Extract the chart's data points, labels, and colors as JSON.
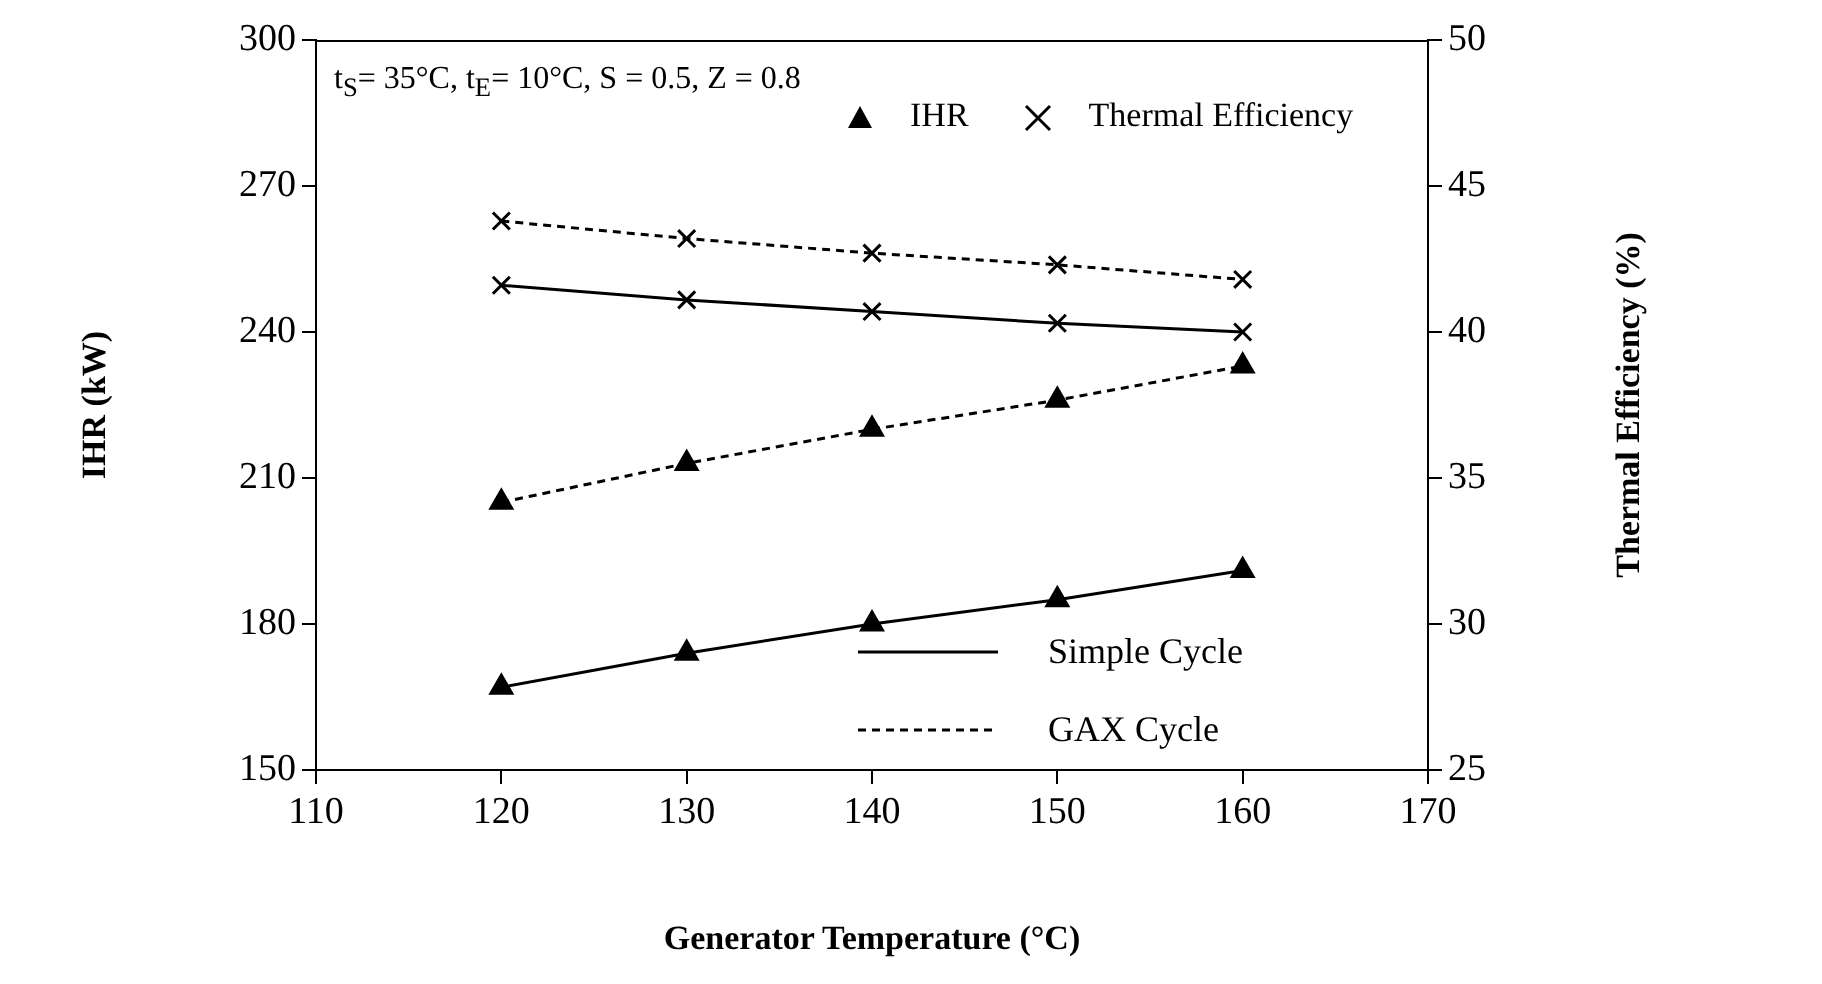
{
  "chart_data": {
    "type": "line",
    "xlabel": "Generator Temperature (°C)",
    "ylabel": "IHR (kW)",
    "y2label": "Thermal Efficiency (%)",
    "x": [
      120,
      130,
      140,
      150,
      160
    ],
    "series": [
      {
        "name": "Simple Cycle",
        "color": "#000000",
        "values": [
          167,
          174,
          180,
          185,
          191
        ],
        "marker": "triangle",
        "line_style": "solid"
      },
      {
        "name": "GAX Cycle",
        "color": "#000000",
        "values": [
          205,
          213,
          220,
          226,
          233
        ],
        "marker": "triangle",
        "line_style": "dashed"
      },
      {
        "color": "#000000",
        "values": [
          41.6,
          41.1,
          40.7,
          40.3,
          40.0
        ],
        "marker": "cross",
        "line_style": "solid",
        "axis": "y2"
      },
      {
        "color": "#000000",
        "values": [
          43.8,
          43.2,
          42.7,
          42.3,
          41.8
        ],
        "marker": "cross",
        "line_style": "dashed",
        "axis": "y2"
      }
    ],
    "xlim": [
      110,
      170
    ],
    "xticks": [
      110,
      120,
      130,
      140,
      150,
      160,
      170
    ],
    "ylim": [
      150,
      300
    ],
    "yticks": [
      150,
      180,
      210,
      240,
      270,
      300
    ],
    "y2lim": [
      25,
      50
    ],
    "y2ticks": [
      25,
      30,
      35,
      40,
      45,
      50
    ],
    "annotations": [
      "t$_{S}$= 35°C, t$_{E}$= 10°C, S = 0.5, Z = 0.8",
      "IHR",
      "Thermal Efficiency"
    ],
    "legend": "bottom right",
    "grid": false
  }
}
